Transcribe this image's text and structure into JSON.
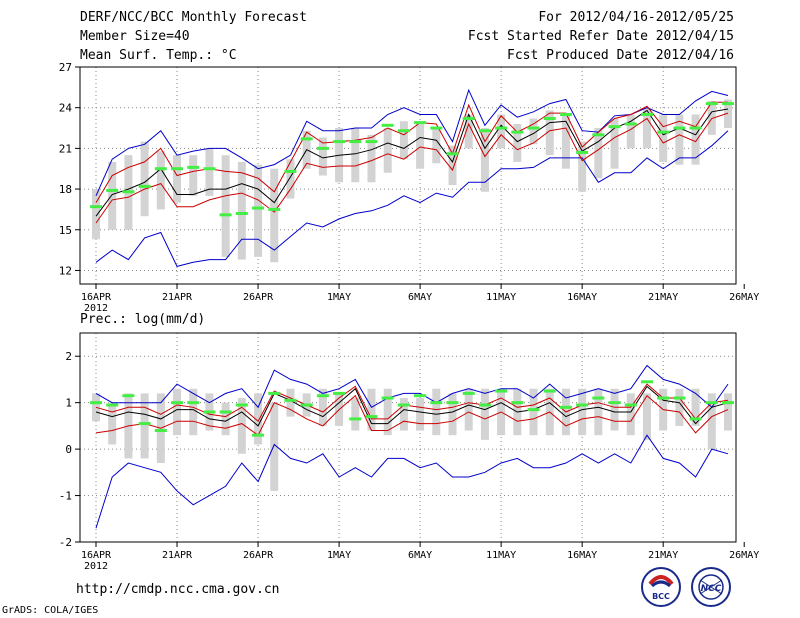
{
  "header": {
    "title_left_1": "DERF/NCC/BCC Monthly Forecast",
    "title_left_2": "Member Size=40",
    "title_left_3": "Mean Surf. Temp.: °C",
    "title_right_1": "For 2012/04/16-2012/05/25",
    "title_right_2": "Fcst Started Refer Date 2012/04/15",
    "title_right_3": "Fcst Produced Date 2012/04/16"
  },
  "footer": {
    "url": "http://cmdp.ncc.cma.gov.cn",
    "credit": "GrADS: COLA/IGES",
    "logo_left_label": "BCC",
    "logo_right_label": "NCC"
  },
  "colors": {
    "box": "#d3d3d3",
    "median": "#44ee44",
    "mean": "#000000",
    "spread": "#cc0000",
    "envelope": "#0000cc",
    "grid": "#888888"
  },
  "chart_data": [
    {
      "type": "line",
      "title": "Mean Surf. Temp.: °C",
      "xlabel": "",
      "ylabel": "",
      "x_ticks": [
        "16APR",
        "21APR",
        "26APR",
        "1MAY",
        "6MAY",
        "11MAY",
        "16MAY",
        "21MAY",
        "26MAY"
      ],
      "x_year": "2012",
      "xlim": [
        0,
        39
      ],
      "ylim": [
        11,
        27
      ],
      "y_ticks": [
        12,
        15,
        18,
        21,
        24,
        27
      ],
      "y_tick_labels": [
        "12",
        "15",
        "18",
        "21",
        "24",
        "27"
      ],
      "box_low": [
        14.3,
        15.0,
        15.0,
        16.0,
        16.5,
        17.0,
        17.5,
        17.5,
        13.0,
        12.8,
        13.0,
        12.6,
        17.3,
        19.5,
        19.0,
        18.5,
        18.5,
        18.5,
        19.2,
        20.2,
        19.5,
        19.9,
        18.3,
        21.0,
        17.8,
        21.0,
        20.0,
        21.3,
        20.5,
        19.5,
        17.8,
        18.8,
        19.5,
        21.0,
        21.0,
        20.0,
        19.8,
        19.8,
        22.0,
        22.5
      ],
      "box_high": [
        18.0,
        20.0,
        20.5,
        21.5,
        20.8,
        20.5,
        20.5,
        21.0,
        20.5,
        20.0,
        19.8,
        19.5,
        20.2,
        22.3,
        21.8,
        22.5,
        22.5,
        22.0,
        22.5,
        23.0,
        22.8,
        22.5,
        21.2,
        23.5,
        22.5,
        23.5,
        22.8,
        23.2,
        23.8,
        23.5,
        21.5,
        22.5,
        23.2,
        23.5,
        24.0,
        23.5,
        23.5,
        23.5,
        24.5,
        24.6
      ],
      "median": [
        16.7,
        17.9,
        17.8,
        18.2,
        19.5,
        19.5,
        19.6,
        19.5,
        16.1,
        16.2,
        16.6,
        16.5,
        19.3,
        21.7,
        21.0,
        21.5,
        21.5,
        21.5,
        22.7,
        22.3,
        22.9,
        22.5,
        20.6,
        23.2,
        22.3,
        22.5,
        22.2,
        22.5,
        23.2,
        23.5,
        20.7,
        22.0,
        22.6,
        22.8,
        23.5,
        22.2,
        22.5,
        22.5,
        24.3,
        24.3
      ],
      "mean": [
        16.0,
        17.6,
        18.0,
        18.5,
        19.5,
        17.6,
        17.6,
        18.0,
        18.0,
        18.4,
        18.0,
        17.0,
        18.9,
        20.9,
        20.3,
        20.5,
        20.6,
        20.9,
        21.4,
        21.0,
        21.8,
        21.6,
        20.0,
        23.5,
        21.0,
        22.7,
        21.5,
        22.1,
        22.9,
        23.0,
        20.8,
        21.5,
        22.5,
        23.0,
        23.8,
        22.0,
        22.5,
        22.0,
        23.7,
        23.9
      ],
      "mean_plus": [
        17.0,
        19.0,
        19.6,
        20.0,
        21.0,
        19.0,
        19.3,
        19.5,
        19.3,
        19.2,
        18.8,
        17.8,
        20.0,
        22.2,
        21.4,
        21.5,
        21.6,
        21.8,
        22.5,
        22.0,
        22.9,
        22.8,
        20.6,
        24.2,
        21.5,
        23.4,
        22.2,
        22.8,
        23.6,
        23.6,
        21.1,
        22.2,
        23.2,
        23.5,
        24.1,
        22.6,
        23.0,
        22.6,
        24.4,
        24.4
      ],
      "mean_minus": [
        15.5,
        17.2,
        17.4,
        18.0,
        18.4,
        16.7,
        16.7,
        17.2,
        17.5,
        17.7,
        17.2,
        16.3,
        18.0,
        19.9,
        19.6,
        19.7,
        19.7,
        20.1,
        20.6,
        20.2,
        21.1,
        20.9,
        19.4,
        22.8,
        20.4,
        22.0,
        20.9,
        21.4,
        22.3,
        22.5,
        20.1,
        20.9,
        21.8,
        22.4,
        23.2,
        21.4,
        22.0,
        21.5,
        23.2,
        23.6
      ],
      "max": [
        17.5,
        20.2,
        21.0,
        21.3,
        22.3,
        20.5,
        20.8,
        21.0,
        21.0,
        20.3,
        19.5,
        19.8,
        20.5,
        23.0,
        22.3,
        22.3,
        22.5,
        22.5,
        23.5,
        24.0,
        23.5,
        23.5,
        21.5,
        25.3,
        22.7,
        24.2,
        23.3,
        23.7,
        24.3,
        24.6,
        22.3,
        22.2,
        23.4,
        23.5,
        24.0,
        23.5,
        23.5,
        24.5,
        25.2,
        24.9
      ],
      "min": [
        12.6,
        13.5,
        12.8,
        14.4,
        14.8,
        12.3,
        12.6,
        12.8,
        12.8,
        14.3,
        14.3,
        13.5,
        14.5,
        15.5,
        15.2,
        15.8,
        16.2,
        16.4,
        16.8,
        17.5,
        17.0,
        17.7,
        17.4,
        18.5,
        18.5,
        19.5,
        19.5,
        19.6,
        20.3,
        20.3,
        20.3,
        18.5,
        19.2,
        19.2,
        20.3,
        19.5,
        20.3,
        20.3,
        21.2,
        22.3
      ]
    },
    {
      "type": "line",
      "title": "Prec.: log(mm/d)",
      "xlabel": "",
      "ylabel": "",
      "x_ticks": [
        "16APR",
        "21APR",
        "26APR",
        "1MAY",
        "6MAY",
        "11MAY",
        "16MAY",
        "21MAY",
        "26MAY"
      ],
      "x_year": "2012",
      "xlim": [
        0,
        39
      ],
      "ylim": [
        -2,
        2.5
      ],
      "y_ticks": [
        -2,
        -1,
        0,
        1,
        2
      ],
      "y_tick_labels": [
        "-2",
        "-1",
        "0",
        "1",
        "2"
      ],
      "box_low": [
        0.6,
        0.1,
        -0.2,
        -0.2,
        -0.3,
        0.3,
        0.3,
        0.4,
        0.3,
        -0.1,
        0.1,
        -0.9,
        0.7,
        0.7,
        0.5,
        0.5,
        0.4,
        0.4,
        0.3,
        0.4,
        0.4,
        0.3,
        0.3,
        0.4,
        0.2,
        0.3,
        0.3,
        0.3,
        0.3,
        0.3,
        0.3,
        0.3,
        0.4,
        0.3,
        0.2,
        0.4,
        0.5,
        0.5,
        0.0,
        0.4
      ],
      "box_high": [
        1.2,
        1.0,
        1.2,
        1.2,
        1.2,
        1.3,
        1.3,
        1.2,
        1.0,
        1.1,
        1.2,
        1.0,
        1.3,
        1.2,
        1.3,
        1.2,
        1.1,
        1.3,
        1.3,
        1.1,
        1.1,
        1.3,
        1.2,
        1.3,
        1.3,
        1.3,
        1.3,
        1.3,
        1.3,
        1.3,
        1.3,
        1.3,
        1.3,
        1.2,
        1.2,
        1.3,
        1.3,
        1.3,
        1.2,
        1.2
      ],
      "median": [
        1.0,
        0.95,
        1.15,
        0.55,
        0.4,
        1.0,
        1.0,
        0.8,
        0.8,
        0.95,
        0.3,
        1.2,
        1.05,
        0.95,
        1.15,
        1.2,
        0.65,
        0.7,
        1.1,
        0.95,
        1.15,
        1.0,
        1.0,
        1.2,
        0.95,
        1.25,
        1.0,
        0.85,
        1.25,
        0.9,
        0.95,
        1.1,
        1.0,
        0.95,
        1.45,
        1.1,
        1.1,
        0.65,
        1.0,
        1.0
      ],
      "mean": [
        0.8,
        0.7,
        0.8,
        0.75,
        0.65,
        0.85,
        0.85,
        0.65,
        0.6,
        0.8,
        0.5,
        1.2,
        1.05,
        0.85,
        0.7,
        1.0,
        1.3,
        0.55,
        0.55,
        0.85,
        0.8,
        0.75,
        0.8,
        0.95,
        0.85,
        1.0,
        0.8,
        0.85,
        1.0,
        0.7,
        0.85,
        0.9,
        0.8,
        0.8,
        1.35,
        1.05,
        1.0,
        0.55,
        0.9,
        1.0
      ],
      "mean_plus": [
        0.9,
        0.8,
        0.9,
        0.9,
        0.75,
        0.95,
        0.9,
        0.75,
        0.7,
        0.9,
        0.6,
        1.25,
        1.1,
        0.95,
        0.8,
        1.1,
        1.35,
        0.65,
        0.65,
        0.95,
        0.9,
        0.85,
        0.9,
        1.0,
        0.95,
        1.1,
        0.9,
        0.95,
        1.1,
        0.8,
        0.95,
        1.0,
        0.9,
        0.9,
        1.4,
        1.1,
        1.1,
        0.65,
        1.0,
        1.05
      ],
      "mean_minus": [
        0.35,
        0.4,
        0.5,
        0.55,
        0.45,
        0.6,
        0.6,
        0.5,
        0.45,
        0.55,
        0.3,
        1.0,
        0.85,
        0.65,
        0.5,
        0.85,
        1.15,
        0.4,
        0.4,
        0.6,
        0.55,
        0.55,
        0.6,
        0.8,
        0.65,
        0.8,
        0.6,
        0.65,
        0.8,
        0.5,
        0.65,
        0.7,
        0.6,
        0.6,
        1.15,
        0.85,
        0.8,
        0.35,
        0.7,
        0.85
      ],
      "max": [
        1.2,
        1.0,
        1.0,
        1.0,
        1.0,
        1.4,
        1.2,
        1.0,
        1.2,
        1.3,
        0.9,
        1.7,
        1.5,
        1.4,
        1.2,
        1.3,
        1.5,
        0.9,
        1.1,
        1.2,
        1.2,
        1.0,
        1.2,
        1.3,
        1.2,
        1.3,
        1.3,
        1.1,
        1.4,
        1.1,
        1.2,
        1.3,
        1.2,
        1.3,
        1.8,
        1.5,
        1.4,
        1.2,
        0.9,
        1.4
      ],
      "min": [
        -1.7,
        -0.6,
        -0.3,
        -0.4,
        -0.5,
        -0.9,
        -1.2,
        -1.0,
        -0.8,
        -0.3,
        -0.7,
        0.1,
        -0.2,
        -0.3,
        -0.1,
        -0.6,
        -0.4,
        -0.6,
        -0.2,
        -0.2,
        -0.4,
        -0.3,
        -0.6,
        -0.6,
        -0.5,
        -0.3,
        -0.2,
        -0.4,
        -0.4,
        -0.3,
        -0.1,
        -0.3,
        -0.1,
        -0.3,
        0.3,
        -0.2,
        -0.3,
        -0.6,
        0.0,
        -0.1
      ]
    }
  ]
}
